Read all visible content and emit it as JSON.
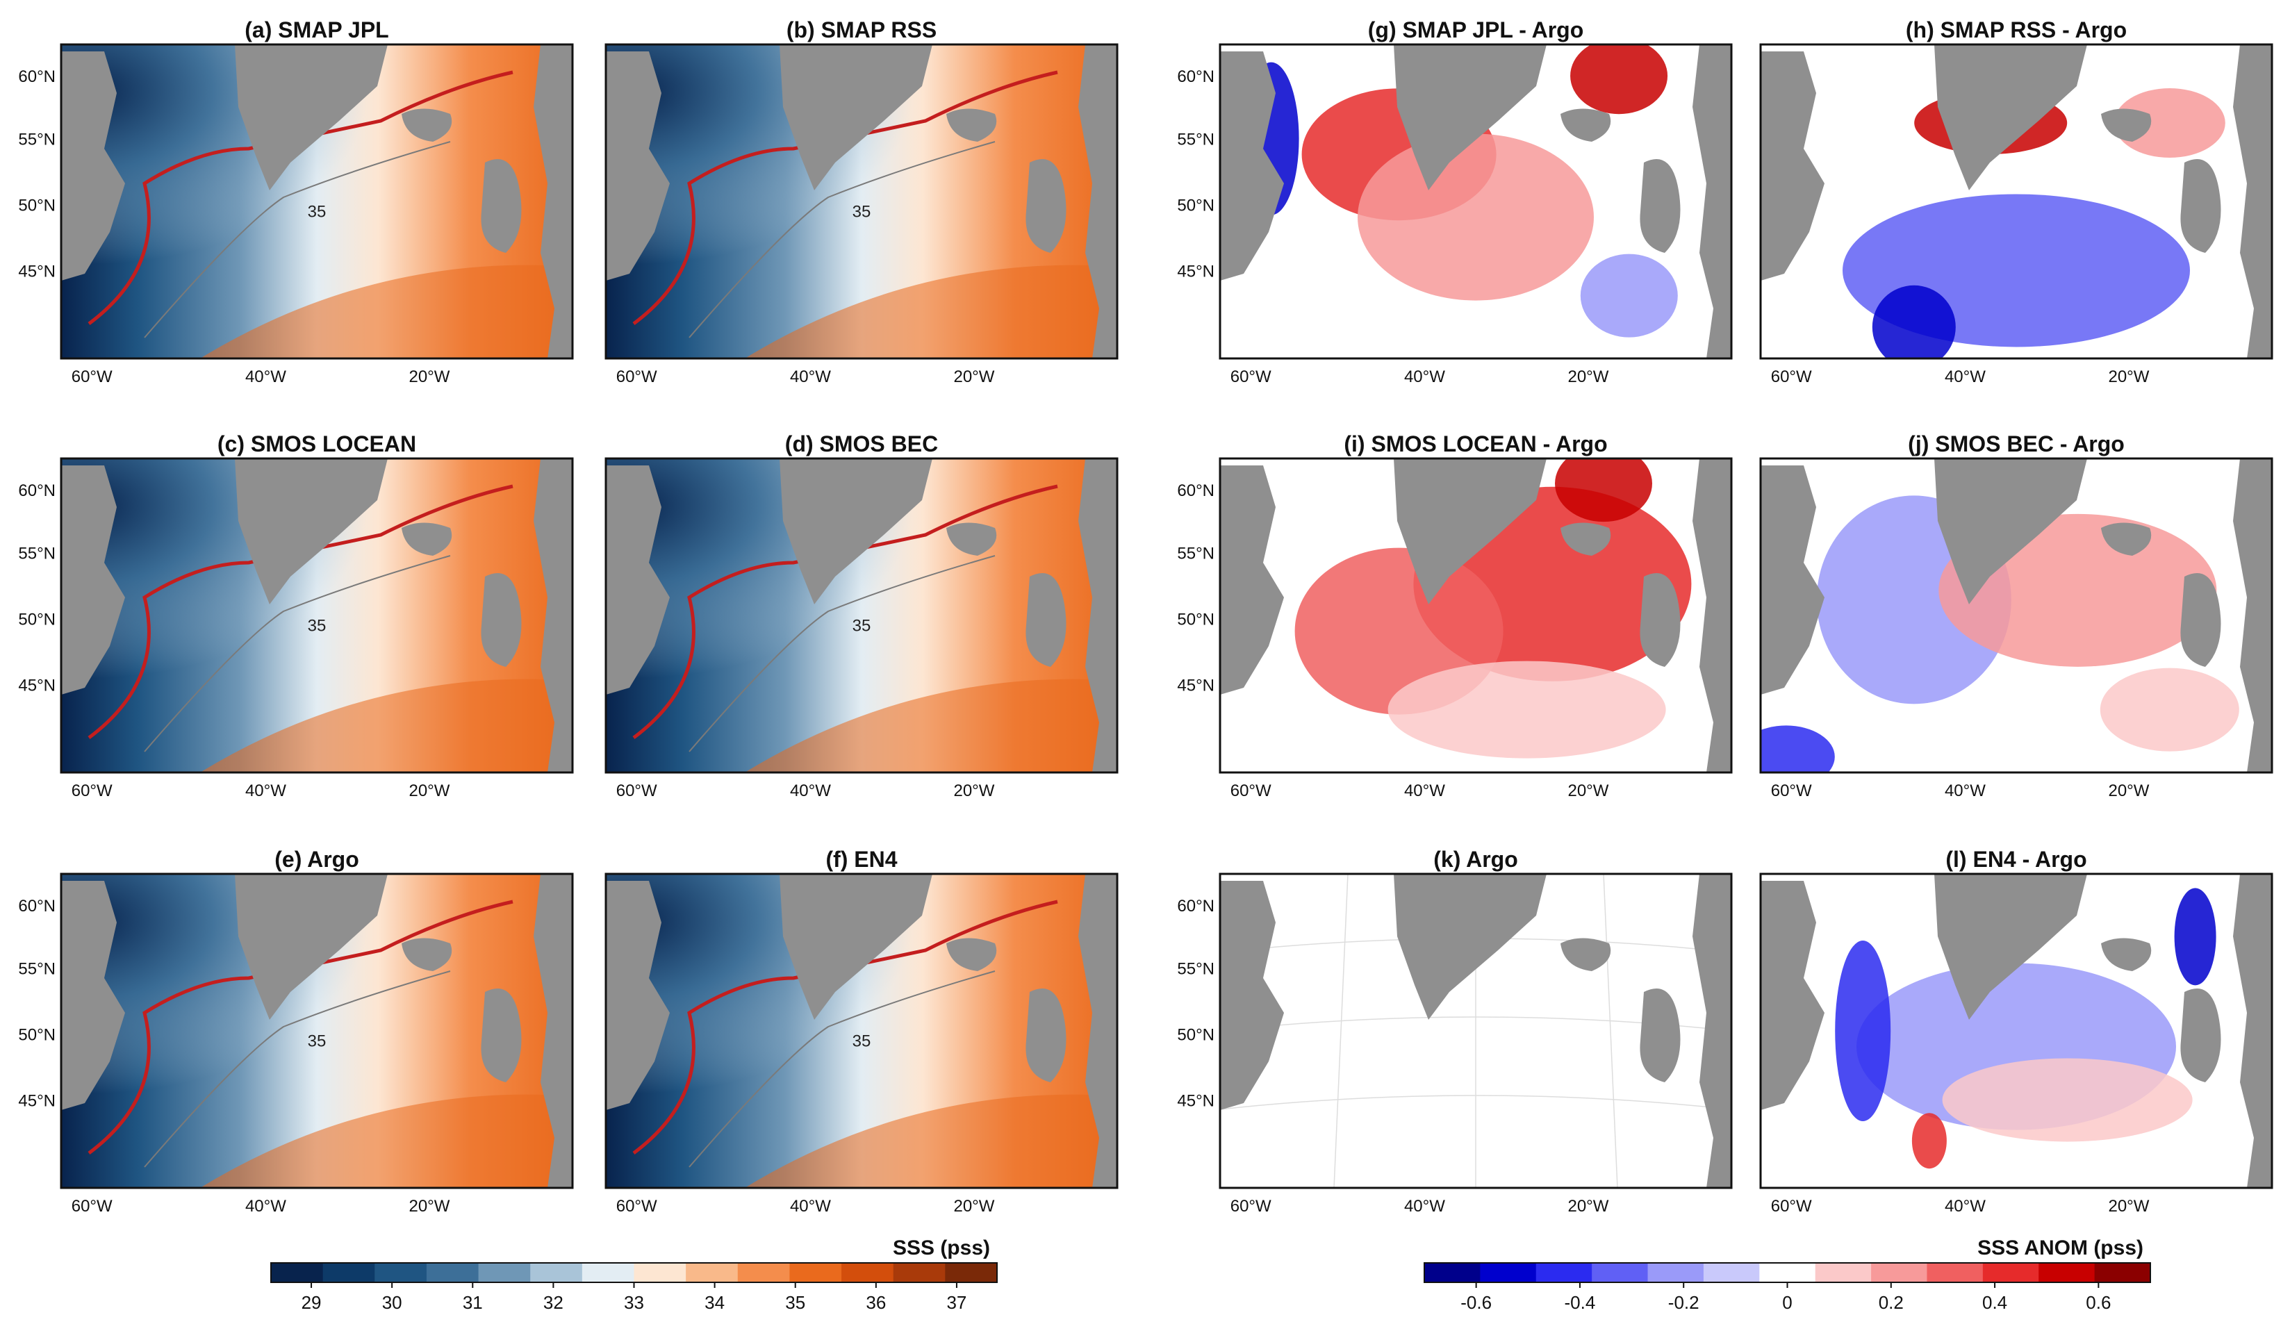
{
  "chart_data": {
    "type": "heatmap",
    "description_units": "pss",
    "panels": [
      {
        "id": "a",
        "title": "(a) SMAP JPL",
        "kind": "sss",
        "contour_label": "35"
      },
      {
        "id": "b",
        "title": "(b) SMAP RSS",
        "kind": "sss",
        "contour_label": "35"
      },
      {
        "id": "g",
        "title": "(g) SMAP JPL - Argo",
        "kind": "anom",
        "contour_label": ""
      },
      {
        "id": "h",
        "title": "(h) SMAP RSS - Argo",
        "kind": "anom",
        "contour_label": ""
      },
      {
        "id": "c",
        "title": "(c) SMOS LOCEAN",
        "kind": "sss",
        "contour_label": "35"
      },
      {
        "id": "d",
        "title": "(d) SMOS BEC",
        "kind": "sss",
        "contour_label": "35"
      },
      {
        "id": "i",
        "title": "(i) SMOS LOCEAN - Argo",
        "kind": "anom",
        "contour_label": ""
      },
      {
        "id": "j",
        "title": "(j) SMOS BEC - Argo",
        "kind": "anom",
        "contour_label": ""
      },
      {
        "id": "e",
        "title": "(e) Argo",
        "kind": "sss",
        "contour_label": "35"
      },
      {
        "id": "f",
        "title": "(f) EN4",
        "kind": "sss",
        "contour_label": "35"
      },
      {
        "id": "k",
        "title": "(k) Argo",
        "kind": "blank",
        "contour_label": ""
      },
      {
        "id": "l",
        "title": "(l) EN4 - Argo",
        "kind": "anom",
        "contour_label": ""
      }
    ],
    "lon_ticks": [
      "60°W",
      "40°W",
      "20°W"
    ],
    "lat_ticks": [
      "60°N",
      "55°N",
      "50°N",
      "45°N"
    ],
    "contour_level": 35,
    "colorbars": [
      {
        "label": "SSS (pss)",
        "range": [
          28.5,
          37.5
        ],
        "ticks": [
          "29",
          "30",
          "31",
          "32",
          "33",
          "34",
          "35",
          "36",
          "37"
        ],
        "colors": [
          "#08234d",
          "#0d3a68",
          "#1f5582",
          "#3d6f98",
          "#6f97b6",
          "#a9c4d8",
          "#e3edf3",
          "#fde6d2",
          "#f9b98a",
          "#f48d4c",
          "#ea6a1d",
          "#d34e0c",
          "#a93a0a",
          "#7a2908"
        ]
      },
      {
        "label": "SSS ANOM (pss)",
        "range": [
          -0.7,
          0.7
        ],
        "ticks": [
          "-0.6",
          "-0.4",
          "-0.2",
          "0",
          "0.2",
          "0.4",
          "0.6"
        ],
        "colors": [
          "#00008b",
          "#0000cd",
          "#2b2bf0",
          "#6060f5",
          "#9a9af9",
          "#c9c9fb",
          "#ffffff",
          "#fbc9c9",
          "#f79a9a",
          "#f06060",
          "#e62b2b",
          "#c80000",
          "#8b0000"
        ]
      }
    ]
  }
}
